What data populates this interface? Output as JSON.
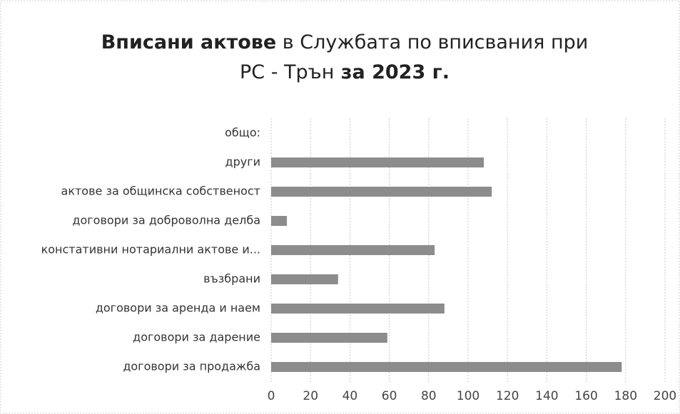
{
  "chart_data": {
    "type": "hbar",
    "title_lines": [
      [
        {
          "text": "Вписани актове",
          "bold": true
        },
        {
          "text": " в Службата по вписвания при",
          "bold": false
        }
      ],
      [
        {
          "text": "РС - Трън",
          "bold": false
        },
        {
          "text": " за 2023 г.",
          "bold": true
        }
      ]
    ],
    "categories": [
      "общо:",
      "други",
      "актове за общинска собственост",
      "договори за доброволна делба",
      "констативни нотариални актове и...",
      "възбрани",
      "договори за аренда и наем",
      "договори за дарение",
      "договори за продажба"
    ],
    "values": [
      null,
      108,
      112,
      8,
      83,
      34,
      88,
      59,
      178
    ],
    "color": "#8c8c8c",
    "xlim": [
      0,
      200
    ],
    "xticks": [
      0,
      20,
      40,
      60,
      80,
      100,
      120,
      140,
      160,
      180,
      200
    ],
    "grid": true
  }
}
